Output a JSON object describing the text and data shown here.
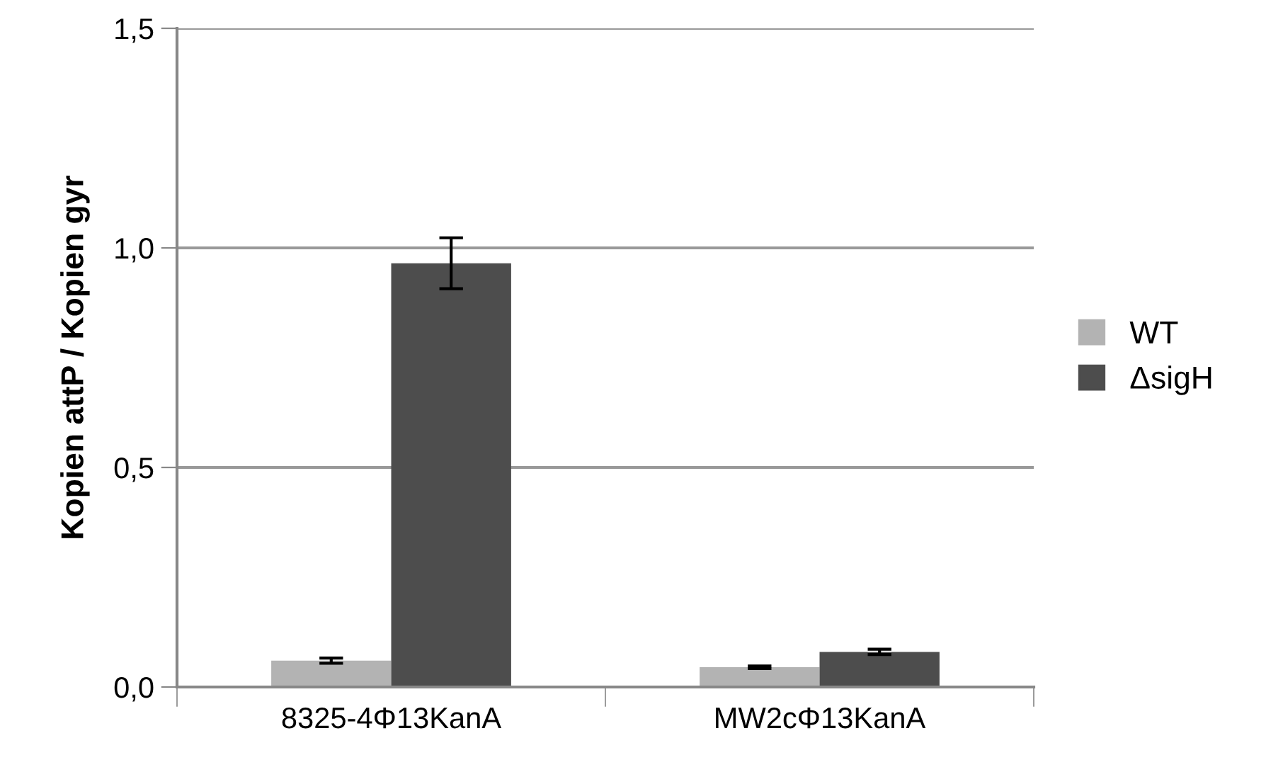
{
  "chart_data": {
    "type": "bar",
    "ylabel": "Kopien attP / Kopien gyr",
    "categories": [
      "8325-4Φ13KanA",
      "MW2cΦ13KanA"
    ],
    "series": [
      {
        "name": "WT",
        "color": "#b3b3b3",
        "values": [
          0.06,
          0.045
        ],
        "errors": [
          0.006,
          0.003
        ]
      },
      {
        "name": "ΔsigH",
        "color": "#4d4d4d",
        "values": [
          0.965,
          0.08
        ],
        "errors": [
          0.058,
          0.006
        ]
      }
    ],
    "ylim": [
      0,
      1.5
    ],
    "yticks": [
      {
        "value": 0,
        "label": "0,0"
      },
      {
        "value": 0.5,
        "label": "0,5"
      },
      {
        "value": 1,
        "label": "1,0"
      },
      {
        "value": 1.5,
        "label": "1,5"
      }
    ],
    "grid": "y",
    "legend": "right"
  }
}
